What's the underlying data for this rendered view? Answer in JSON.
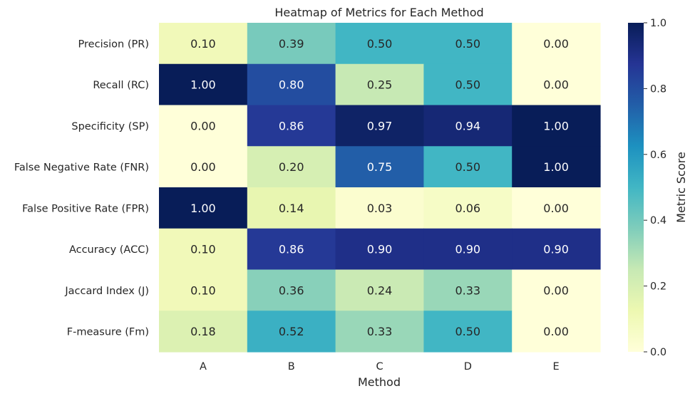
{
  "chart_data": {
    "type": "heatmap",
    "title": "Heatmap of Metrics for Each Method",
    "xlabel": "Method",
    "ylabel": "",
    "x_categories": [
      "A",
      "B",
      "C",
      "D",
      "E"
    ],
    "y_categories": [
      "Precision (PR)",
      "Recall (RC)",
      "Specificity (SP)",
      "False Negative Rate (FNR)",
      "False Positive Rate (FPR)",
      "Accuracy (ACC)",
      "Jaccard Index (J)",
      "F-measure (Fm)"
    ],
    "values": [
      [
        0.1,
        0.39,
        0.5,
        0.5,
        0.0
      ],
      [
        1.0,
        0.8,
        0.25,
        0.5,
        0.0
      ],
      [
        0.0,
        0.86,
        0.97,
        0.94,
        1.0
      ],
      [
        0.0,
        0.2,
        0.75,
        0.5,
        1.0
      ],
      [
        1.0,
        0.14,
        0.03,
        0.06,
        0.0
      ],
      [
        0.1,
        0.86,
        0.9,
        0.9,
        0.9
      ],
      [
        0.1,
        0.36,
        0.24,
        0.33,
        0.0
      ],
      [
        0.18,
        0.52,
        0.33,
        0.5,
        0.0
      ]
    ],
    "value_format": "0.00",
    "colormap": "YlGnBu",
    "colorbar": {
      "label": "Metric Score",
      "range": [
        0,
        1
      ],
      "ticks": [
        "0.0",
        "0.2",
        "0.4",
        "0.6",
        "0.8",
        "1.0"
      ]
    },
    "grid": false
  }
}
